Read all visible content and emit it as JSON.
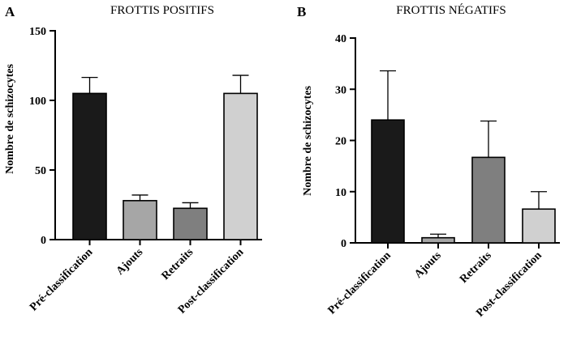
{
  "chart_data": [
    {
      "type": "bar",
      "panel": "A",
      "title": "FROTTIS POSITIFS",
      "ylabel": "Nombre de schizocytes",
      "xlabel": "",
      "categories": [
        "Pré-classification",
        "Ajouts",
        "Retraits",
        "Post-classification"
      ],
      "values": [
        105,
        28,
        22.5,
        105
      ],
      "errors": [
        11.5,
        4,
        4,
        13
      ],
      "colors": [
        "#1a1a1a",
        "#a6a6a6",
        "#7f7f7f",
        "#d0d0d0"
      ],
      "ylim": [
        0,
        150
      ],
      "yticks": [
        "0",
        "50",
        "100",
        "150"
      ],
      "grid": false
    },
    {
      "type": "bar",
      "panel": "B",
      "title": "FROTTIS NÉGATIFS",
      "ylabel": "Nombre de schizocytes",
      "xlabel": "",
      "categories": [
        "Pré-classification",
        "Ajouts",
        "Retraits",
        "Post-classification"
      ],
      "values": [
        24,
        1,
        16.7,
        6.6
      ],
      "errors": [
        9.6,
        0.7,
        7.1,
        3.4
      ],
      "colors": [
        "#1a1a1a",
        "#a6a6a6",
        "#7f7f7f",
        "#d0d0d0"
      ],
      "ylim": [
        0,
        40
      ],
      "yticks": [
        "0",
        "10",
        "20",
        "30",
        "40"
      ],
      "grid": false
    }
  ]
}
